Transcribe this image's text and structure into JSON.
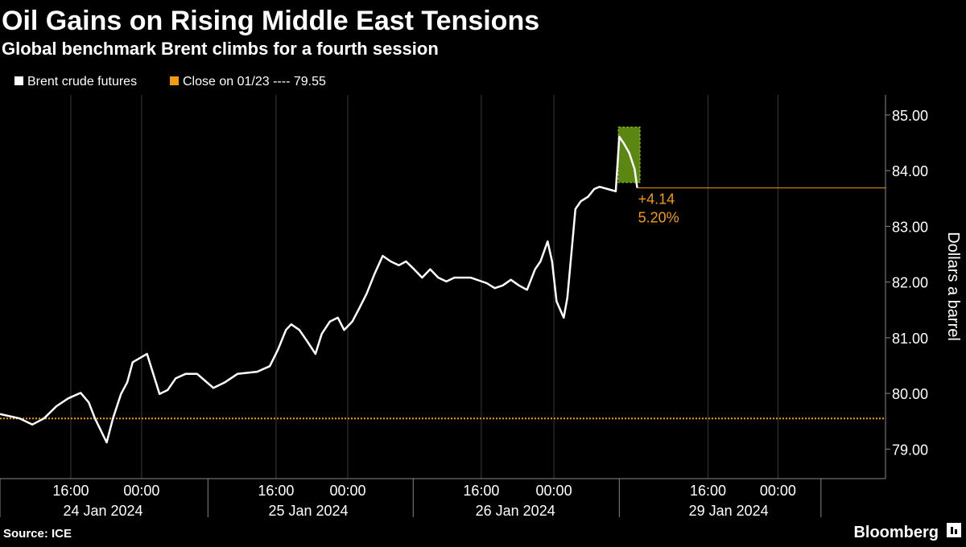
{
  "chart_data": {
    "type": "line",
    "title": "Oil Gains on Rising Middle East Tensions",
    "subtitle": "Global benchmark Brent climbs for a fourth session",
    "y_label": "Dollars a barrel",
    "source": "Source: ICE",
    "brand": "Bloomberg",
    "xlim": [
      0,
      98.8
    ],
    "ylim": [
      78.47,
      85.36
    ],
    "yticks": [
      {
        "value": 79,
        "label": "79.00"
      },
      {
        "value": 80,
        "label": "80.00"
      },
      {
        "value": 81,
        "label": "81.00"
      },
      {
        "value": 82,
        "label": "82.00"
      },
      {
        "value": 83,
        "label": "83.00"
      },
      {
        "value": 84,
        "label": "84.00"
      },
      {
        "value": 85,
        "label": "85.00"
      }
    ],
    "xticks": [
      {
        "value": 7.9,
        "label": "16:00"
      },
      {
        "value": 15.8,
        "label": "00:00"
      },
      {
        "value": 30.8,
        "label": "16:00"
      },
      {
        "value": 38.8,
        "label": "00:00"
      },
      {
        "value": 53.7,
        "label": "16:00"
      },
      {
        "value": 61.8,
        "label": "00:00"
      },
      {
        "value": 79.0,
        "label": "16:00"
      },
      {
        "value": 86.8,
        "label": "00:00"
      }
    ],
    "day_labels": [
      {
        "value": 11.5,
        "label": "24 Jan 2024"
      },
      {
        "value": 34.4,
        "label": "25 Jan 2024"
      },
      {
        "value": 57.5,
        "label": "26 Jan 2024"
      },
      {
        "value": 81.3,
        "label": "29 Jan 2024"
      }
    ],
    "day_dividers": [
      0,
      23.2,
      46.1,
      69.1,
      91.6
    ],
    "series": [
      {
        "name": "Brent crude futures",
        "color": "#ffffff",
        "x": [
          0,
          2.2,
          3.6,
          4.9,
          6.3,
          7.6,
          9.0,
          9.9,
          10.6,
          11.9,
          12.6,
          13.5,
          14.2,
          14.8,
          16.4,
          17.8,
          18.7,
          19.6,
          20.7,
          22.0,
          23.8,
          25.1,
          26.5,
          28.7,
          30.1,
          31.0,
          31.9,
          32.5,
          33.4,
          34.3,
          35.2,
          35.9,
          36.8,
          37.7,
          38.4,
          39.3,
          40.0,
          40.9,
          41.8,
          42.7,
          43.6,
          44.5,
          45.3,
          46.2,
          47.1,
          48.0,
          48.9,
          49.8,
          50.7,
          52.5,
          54.3,
          55.2,
          56.1,
          57.0,
          57.9,
          58.8,
          59.7,
          60.3,
          61.1,
          61.6,
          62.1,
          62.9,
          63.3,
          63.8,
          64.2,
          64.8,
          65.6,
          66.3,
          66.9,
          67.8,
          68.7,
          69.1,
          69.6,
          70.2,
          70.8,
          71.1
        ],
        "values": [
          79.63,
          79.55,
          79.44,
          79.55,
          79.77,
          79.91,
          80.01,
          79.84,
          79.55,
          79.12,
          79.55,
          79.99,
          80.2,
          80.56,
          80.71,
          79.99,
          80.06,
          80.27,
          80.35,
          80.35,
          80.1,
          80.2,
          80.35,
          80.39,
          80.49,
          80.78,
          81.14,
          81.24,
          81.14,
          80.93,
          80.71,
          81.07,
          81.29,
          81.36,
          81.14,
          81.29,
          81.5,
          81.79,
          82.15,
          82.47,
          82.37,
          82.3,
          82.37,
          82.23,
          82.08,
          82.23,
          82.08,
          82.01,
          82.08,
          82.08,
          81.98,
          81.89,
          81.94,
          82.04,
          81.94,
          81.86,
          82.23,
          82.37,
          82.73,
          82.37,
          81.65,
          81.36,
          81.72,
          82.59,
          83.31,
          83.45,
          83.53,
          83.67,
          83.71,
          83.67,
          83.63,
          84.61,
          84.49,
          84.32,
          84.03,
          83.69
        ]
      }
    ],
    "reference": {
      "name": "Close on 01/23 ---- 79.55",
      "value": 79.55,
      "color": "#f39c12"
    },
    "last_value": 83.69,
    "change_labels": [
      "+4.14",
      "5.20%"
    ],
    "highlight": {
      "xlim": [
        69.0,
        71.4
      ],
      "ylim": [
        83.79,
        84.78
      ],
      "color": "#7ab317"
    }
  }
}
